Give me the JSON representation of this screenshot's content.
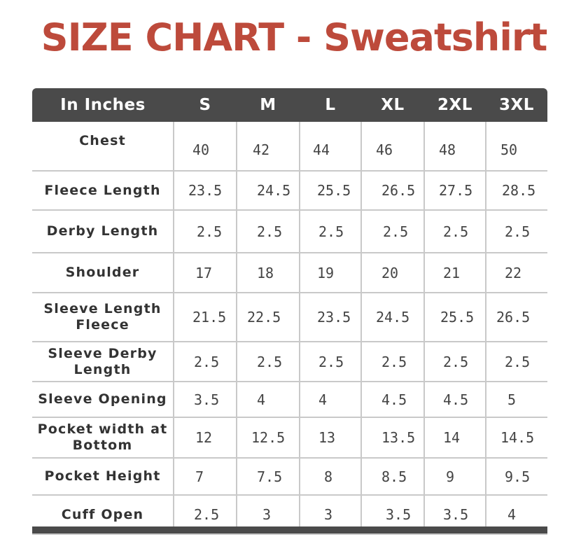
{
  "title": "SIZE CHART - Sweatshirt",
  "table": {
    "headers": [
      "In Inches",
      "S",
      "M",
      "L",
      "XL",
      "2XL",
      "3XL"
    ],
    "rows": [
      {
        "label": "Chest",
        "values": [
          "40",
          "42",
          "44",
          "46",
          "48",
          "50"
        ]
      },
      {
        "label": "Fleece Length",
        "values": [
          "23.5",
          "24.5",
          "25.5",
          "26.5",
          "27.5",
          "28.5"
        ]
      },
      {
        "label": "Derby Length",
        "values": [
          "2.5",
          "2.5",
          "2.5",
          "2.5",
          "2.5",
          "2.5"
        ]
      },
      {
        "label": "Shoulder",
        "values": [
          "17",
          "18",
          "19",
          "20",
          "21",
          "22"
        ]
      },
      {
        "label": "Sleeve Length Fleece",
        "values": [
          "21.5",
          "22.5",
          "23.5",
          "24.5",
          "25.5",
          "26.5"
        ]
      },
      {
        "label": "Sleeve Derby Length",
        "values": [
          "2.5",
          "2.5",
          "2.5",
          "2.5",
          "2.5",
          "2.5"
        ]
      },
      {
        "label": "Sleeve Opening",
        "values": [
          "3.5",
          "4",
          "4",
          "4.5",
          "4.5",
          "5"
        ]
      },
      {
        "label": "Pocket width at Bottom",
        "values": [
          "12",
          "12.5",
          "13",
          "13.5",
          "14",
          "14.5"
        ]
      },
      {
        "label": "Pocket Height",
        "values": [
          "7",
          "7.5",
          "8",
          "8.5",
          "9",
          "9.5"
        ]
      },
      {
        "label": "Cuff Open",
        "values": [
          "2.5",
          "3",
          "3",
          "3.5",
          "3.5",
          "4"
        ]
      }
    ]
  },
  "colors": {
    "title": "#bd4a3b",
    "header_bg": "#4a4a4a",
    "grid": "#c9c9c9"
  }
}
